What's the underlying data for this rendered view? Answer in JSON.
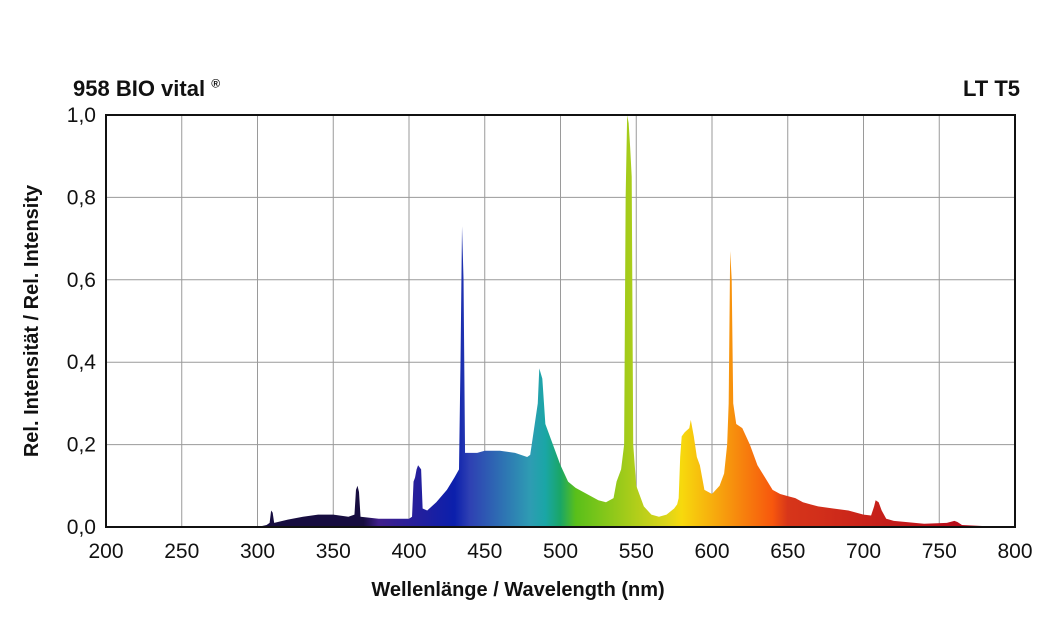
{
  "header": {
    "title": "958  BIO vital",
    "title_mark": "®",
    "subtitle": "LT T5"
  },
  "chart_data": {
    "type": "area",
    "title": "958  BIO vital ®",
    "subtitle": "LT T5",
    "xlabel": "Wellenlänge / Wavelength (nm)",
    "ylabel": "Rel. Intensität / Rel. Intensity",
    "xlim": [
      200,
      800
    ],
    "ylim": [
      0,
      1.0
    ],
    "x_ticks": [
      200,
      250,
      300,
      350,
      400,
      450,
      500,
      550,
      600,
      650,
      700,
      750,
      800
    ],
    "y_ticks": [
      0.0,
      0.2,
      0.4,
      0.6,
      0.8,
      1.0
    ],
    "y_tick_labels": [
      "0,0",
      "0,2",
      "0,4",
      "0,6",
      "0,8",
      "1,0"
    ],
    "grid": true,
    "fill": "spectral color gradient",
    "series": [
      {
        "values": [
          [
            300,
            0.0
          ],
          [
            306,
            0.005
          ],
          [
            308,
            0.01
          ],
          [
            309,
            0.04
          ],
          [
            310,
            0.035
          ],
          [
            311,
            0.01
          ],
          [
            320,
            0.018
          ],
          [
            330,
            0.025
          ],
          [
            340,
            0.03
          ],
          [
            350,
            0.03
          ],
          [
            360,
            0.025
          ],
          [
            364,
            0.03
          ],
          [
            365,
            0.09
          ],
          [
            366,
            0.1
          ],
          [
            367,
            0.085
          ],
          [
            368,
            0.025
          ],
          [
            380,
            0.02
          ],
          [
            400,
            0.02
          ],
          [
            402,
            0.025
          ],
          [
            403,
            0.11
          ],
          [
            404,
            0.12
          ],
          [
            405,
            0.14
          ],
          [
            406,
            0.15
          ],
          [
            408,
            0.14
          ],
          [
            409,
            0.045
          ],
          [
            412,
            0.04
          ],
          [
            418,
            0.06
          ],
          [
            425,
            0.09
          ],
          [
            430,
            0.12
          ],
          [
            433,
            0.14
          ],
          [
            434,
            0.4
          ],
          [
            435,
            0.73
          ],
          [
            436,
            0.6
          ],
          [
            437,
            0.18
          ],
          [
            445,
            0.18
          ],
          [
            450,
            0.185
          ],
          [
            460,
            0.185
          ],
          [
            470,
            0.18
          ],
          [
            478,
            0.17
          ],
          [
            480,
            0.175
          ],
          [
            483,
            0.25
          ],
          [
            485,
            0.3
          ],
          [
            486,
            0.385
          ],
          [
            488,
            0.36
          ],
          [
            490,
            0.25
          ],
          [
            495,
            0.2
          ],
          [
            498,
            0.17
          ],
          [
            500,
            0.15
          ],
          [
            505,
            0.11
          ],
          [
            510,
            0.095
          ],
          [
            515,
            0.085
          ],
          [
            520,
            0.075
          ],
          [
            525,
            0.065
          ],
          [
            530,
            0.06
          ],
          [
            535,
            0.07
          ],
          [
            537,
            0.11
          ],
          [
            540,
            0.14
          ],
          [
            542,
            0.2
          ],
          [
            543,
            0.8
          ],
          [
            544,
            1.0
          ],
          [
            545,
            0.98
          ],
          [
            546,
            0.92
          ],
          [
            547,
            0.85
          ],
          [
            548,
            0.2
          ],
          [
            550,
            0.1
          ],
          [
            555,
            0.05
          ],
          [
            560,
            0.03
          ],
          [
            565,
            0.025
          ],
          [
            570,
            0.03
          ],
          [
            575,
            0.045
          ],
          [
            577,
            0.055
          ],
          [
            578,
            0.07
          ],
          [
            579,
            0.17
          ],
          [
            580,
            0.22
          ],
          [
            582,
            0.23
          ],
          [
            585,
            0.24
          ],
          [
            586,
            0.26
          ],
          [
            588,
            0.22
          ],
          [
            590,
            0.17
          ],
          [
            592,
            0.15
          ],
          [
            595,
            0.09
          ],
          [
            600,
            0.08
          ],
          [
            605,
            0.1
          ],
          [
            608,
            0.13
          ],
          [
            610,
            0.2
          ],
          [
            611,
            0.3
          ],
          [
            612,
            0.67
          ],
          [
            613,
            0.6
          ],
          [
            614,
            0.3
          ],
          [
            616,
            0.25
          ],
          [
            620,
            0.24
          ],
          [
            625,
            0.2
          ],
          [
            630,
            0.15
          ],
          [
            635,
            0.12
          ],
          [
            640,
            0.09
          ],
          [
            645,
            0.08
          ],
          [
            650,
            0.075
          ],
          [
            655,
            0.07
          ],
          [
            660,
            0.06
          ],
          [
            665,
            0.055
          ],
          [
            670,
            0.05
          ],
          [
            680,
            0.045
          ],
          [
            690,
            0.04
          ],
          [
            700,
            0.03
          ],
          [
            705,
            0.028
          ],
          [
            707,
            0.05
          ],
          [
            708,
            0.065
          ],
          [
            710,
            0.06
          ],
          [
            712,
            0.04
          ],
          [
            715,
            0.02
          ],
          [
            720,
            0.015
          ],
          [
            740,
            0.008
          ],
          [
            755,
            0.01
          ],
          [
            760,
            0.015
          ],
          [
            762,
            0.012
          ],
          [
            765,
            0.005
          ],
          [
            780,
            0.002
          ],
          [
            800,
            0.0
          ]
        ]
      }
    ]
  }
}
